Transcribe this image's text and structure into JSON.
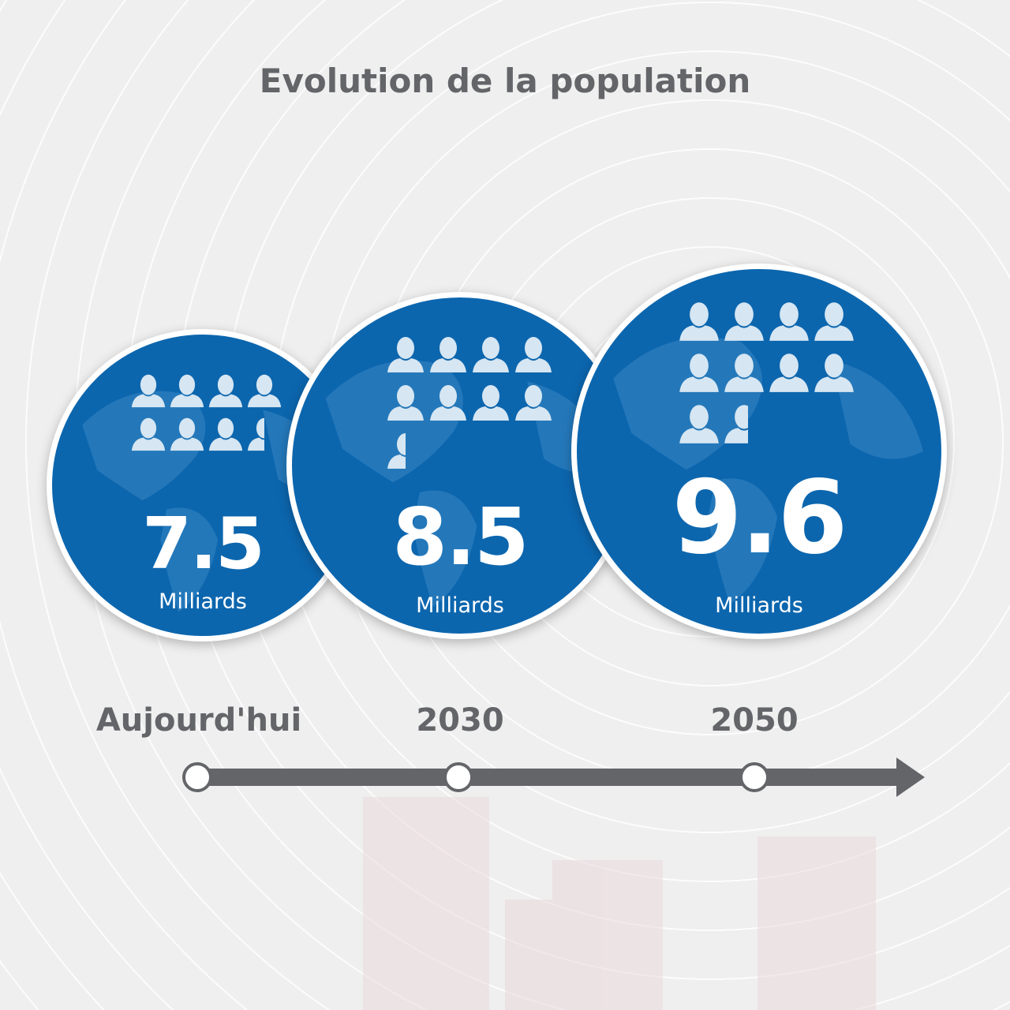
{
  "title": "Evolution de la population",
  "colors": {
    "globe": "#0c66ae",
    "land": "#2a7dbd",
    "person": "#d6e6f2",
    "text_gray": "#636569",
    "timeline": "#636569"
  },
  "icon_unit": "person-icon",
  "items": [
    {
      "period": "Aujourd'hui",
      "value": "7.5",
      "number": 7.5,
      "unit": "Milliards"
    },
    {
      "period": "2030",
      "value": "8.5",
      "number": 8.5,
      "unit": "Milliards"
    },
    {
      "period": "2050",
      "value": "9.6",
      "number": 9.6,
      "unit": "Milliards"
    }
  ]
}
